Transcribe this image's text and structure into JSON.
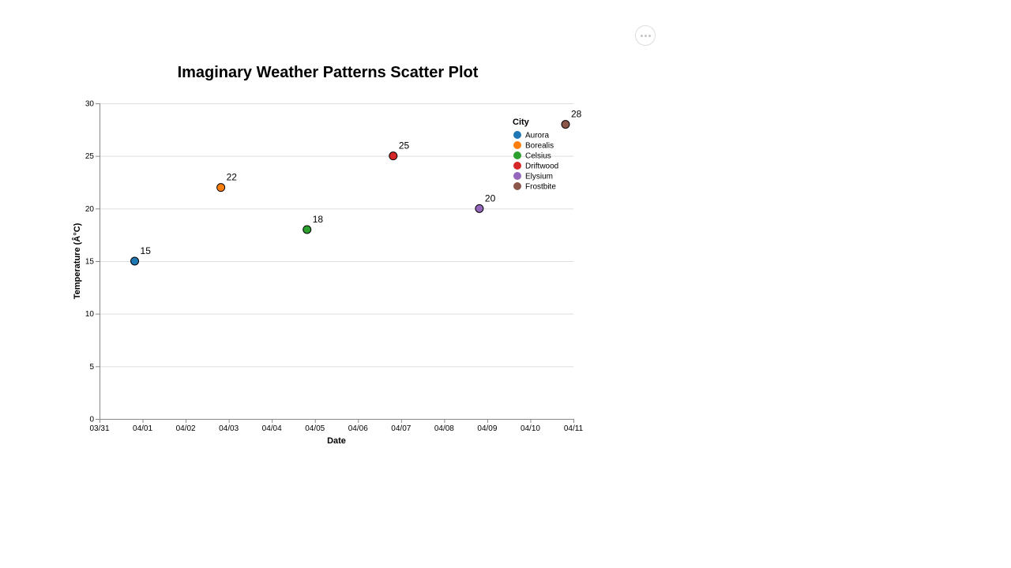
{
  "actions_menu": {
    "icon": "more-horizontal-icon"
  },
  "chart_data": {
    "type": "scatter",
    "title": "Imaginary Weather Patterns Scatter Plot",
    "xlabel": "Date",
    "ylabel": "Temperature (Â°C)",
    "x_tick_labels": [
      "03/31",
      "04/01",
      "04/02",
      "04/03",
      "04/04",
      "04/05",
      "04/06",
      "04/07",
      "04/08",
      "04/09",
      "04/10",
      "04/11"
    ],
    "ylim": [
      0,
      30
    ],
    "y_ticks": [
      0,
      5,
      10,
      15,
      20,
      25,
      30
    ],
    "grid": true,
    "legend": {
      "title": "City",
      "placement": "top-right"
    },
    "points": [
      {
        "city": "Aurora",
        "date": "04/01",
        "temperature": 15,
        "label": "15",
        "color": "#1f77b4"
      },
      {
        "city": "Borealis",
        "date": "04/03",
        "temperature": 22,
        "label": "22",
        "color": "#ff7f0e"
      },
      {
        "city": "Celsius",
        "date": "04/05",
        "temperature": 18,
        "label": "18",
        "color": "#2ca02c"
      },
      {
        "city": "Driftwood",
        "date": "04/07",
        "temperature": 25,
        "label": "25",
        "color": "#d62728"
      },
      {
        "city": "Elysium",
        "date": "04/09",
        "temperature": 20,
        "label": "20",
        "color": "#9467bd"
      },
      {
        "city": "Frostbite",
        "date": "04/11",
        "temperature": 28,
        "label": "28",
        "color": "#8c564b"
      }
    ]
  }
}
